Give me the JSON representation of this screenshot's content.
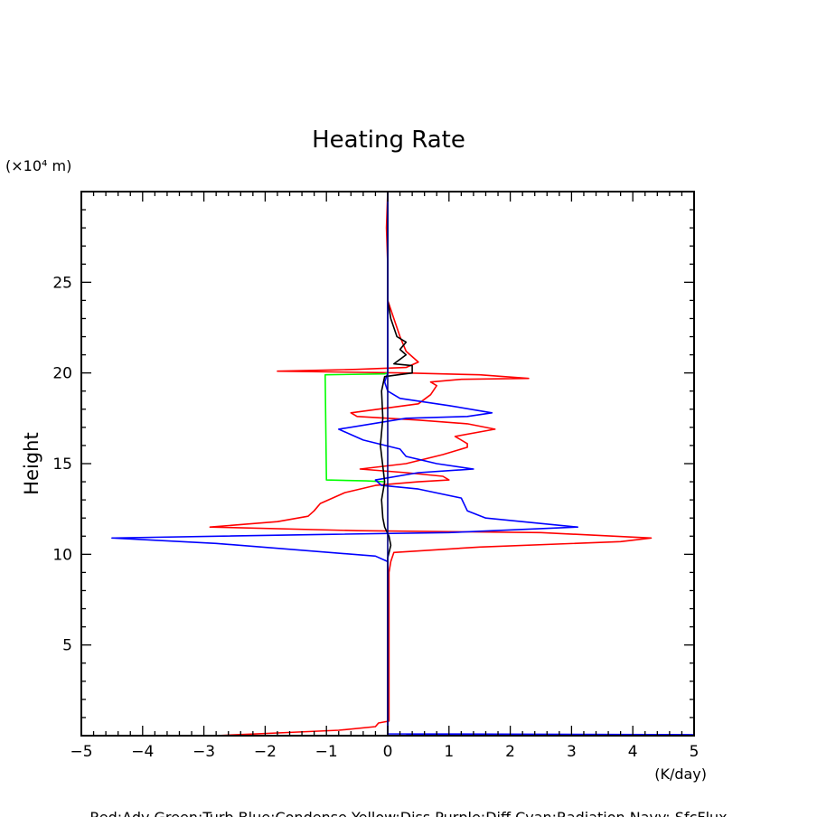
{
  "chart_data": {
    "type": "line",
    "title": "Heating Rate",
    "xlabel": "(K/day)",
    "ylabel": "Height",
    "y_unit_label": "(×10⁴ m)",
    "xlim": [
      -5,
      5
    ],
    "ylim": [
      0,
      30
    ],
    "x_ticks": [
      -5,
      -4,
      -3,
      -2,
      -1,
      0,
      1,
      2,
      3,
      4,
      5
    ],
    "y_ticks": [
      5,
      10,
      15,
      20,
      25
    ],
    "legend_text": "Red:Adv  Green:Turb  Blue:Condense  Yellow:Diss  Purple:Diff  Cyan:Radiation  Navy: SfcFlux",
    "grid": false,
    "series": [
      {
        "color": "#ff0000",
        "points": [
          [
            -2.8,
            0
          ],
          [
            -1.8,
            0.15
          ],
          [
            -0.8,
            0.3
          ],
          [
            -0.2,
            0.5
          ],
          [
            -0.15,
            0.7
          ],
          [
            0.02,
            0.8
          ],
          [
            0.02,
            3
          ],
          [
            0.02,
            5
          ],
          [
            0.02,
            8
          ],
          [
            0.02,
            9
          ],
          [
            0.05,
            9.6
          ],
          [
            0.1,
            10.1
          ],
          [
            1.5,
            10.4
          ],
          [
            3.8,
            10.7
          ],
          [
            4.3,
            10.9
          ],
          [
            2.5,
            11.2
          ],
          [
            -0.5,
            11.3
          ],
          [
            -2.9,
            11.5
          ],
          [
            -1.8,
            11.8
          ],
          [
            -1.3,
            12.1
          ],
          [
            -1.2,
            12.4
          ],
          [
            -1.1,
            12.8
          ],
          [
            -0.7,
            13.4
          ],
          [
            -0.2,
            13.8
          ],
          [
            0.5,
            14
          ],
          [
            1.0,
            14.1
          ],
          [
            0.9,
            14.3
          ],
          [
            0.3,
            14.5
          ],
          [
            -0.45,
            14.7
          ],
          [
            0.3,
            15
          ],
          [
            0.9,
            15.5
          ],
          [
            1.3,
            15.9
          ],
          [
            1.3,
            16.1
          ],
          [
            1.1,
            16.5
          ],
          [
            1.75,
            16.9
          ],
          [
            1.3,
            17.2
          ],
          [
            0.5,
            17.4
          ],
          [
            -0.5,
            17.6
          ],
          [
            -0.6,
            17.8
          ],
          [
            0.5,
            18.3
          ],
          [
            0.7,
            18.8
          ],
          [
            0.8,
            19.3
          ],
          [
            0.7,
            19.5
          ],
          [
            1.2,
            19.65
          ],
          [
            2.3,
            19.7
          ],
          [
            1.5,
            19.9
          ],
          [
            0.3,
            20.0
          ],
          [
            -1.8,
            20.1
          ],
          [
            -0.5,
            20.2
          ],
          [
            0.3,
            20.3
          ],
          [
            0.5,
            20.6
          ],
          [
            0.3,
            21.2
          ],
          [
            0.2,
            22
          ],
          [
            0.1,
            23
          ],
          [
            0.0,
            24
          ],
          [
            0.0,
            26
          ],
          [
            -0.02,
            28
          ],
          [
            0.0,
            30
          ]
        ]
      },
      {
        "color": "#00ff00",
        "points": [
          [
            -0.05,
            14.0
          ],
          [
            -0.35,
            14.05
          ],
          [
            -1.0,
            14.1
          ],
          [
            -1.02,
            19.9
          ],
          [
            -0.05,
            19.95
          ],
          [
            0.0,
            20.0
          ]
        ]
      },
      {
        "color": "#0000ff",
        "points": [
          [
            0.3,
            0.05
          ],
          [
            3.0,
            0.05
          ],
          [
            5.0,
            0.05
          ],
          [
            0.0,
            0.1
          ],
          [
            0.0,
            9.6
          ],
          [
            -0.2,
            9.9
          ],
          [
            -2.8,
            10.6
          ],
          [
            -4.5,
            10.9
          ],
          [
            -1.0,
            11.1
          ],
          [
            1.0,
            11.2
          ],
          [
            3.1,
            11.5
          ],
          [
            1.6,
            12.0
          ],
          [
            1.3,
            12.4
          ],
          [
            1.2,
            13.1
          ],
          [
            0.5,
            13.6
          ],
          [
            -0.1,
            13.8
          ],
          [
            -0.2,
            14.1
          ],
          [
            0.5,
            14.5
          ],
          [
            1.4,
            14.7
          ],
          [
            0.8,
            15.0
          ],
          [
            0.3,
            15.4
          ],
          [
            0.2,
            15.8
          ],
          [
            -0.4,
            16.3
          ],
          [
            -0.8,
            16.9
          ],
          [
            0.3,
            17.5
          ],
          [
            1.3,
            17.6
          ],
          [
            1.7,
            17.8
          ],
          [
            1.0,
            18.2
          ],
          [
            0.2,
            18.6
          ],
          [
            0.0,
            19.0
          ],
          [
            -0.05,
            19.5
          ],
          [
            0.0,
            20.0
          ],
          [
            0.0,
            25
          ],
          [
            0.0,
            30
          ]
        ]
      },
      {
        "color": "#000000",
        "points": [
          [
            0.0,
            0.1
          ],
          [
            0.0,
            9.8
          ],
          [
            0.05,
            10.5
          ],
          [
            0.02,
            11.0
          ],
          [
            -0.05,
            11.5
          ],
          [
            -0.08,
            12
          ],
          [
            -0.1,
            13
          ],
          [
            -0.05,
            14
          ],
          [
            -0.12,
            16
          ],
          [
            -0.08,
            17.5
          ],
          [
            -0.1,
            19
          ],
          [
            -0.05,
            19.8
          ],
          [
            0.4,
            20.0
          ],
          [
            0.4,
            20.4
          ],
          [
            0.1,
            20.5
          ],
          [
            0.3,
            21.0
          ],
          [
            0.2,
            21.3
          ],
          [
            0.3,
            21.7
          ],
          [
            0.15,
            22.0
          ],
          [
            0.1,
            22.5
          ],
          [
            0.05,
            23
          ],
          [
            0.0,
            24
          ],
          [
            0.0,
            30
          ]
        ]
      },
      {
        "color": "#000080",
        "points": [
          [
            0.0,
            0.0
          ],
          [
            0.0,
            30
          ]
        ]
      }
    ]
  }
}
